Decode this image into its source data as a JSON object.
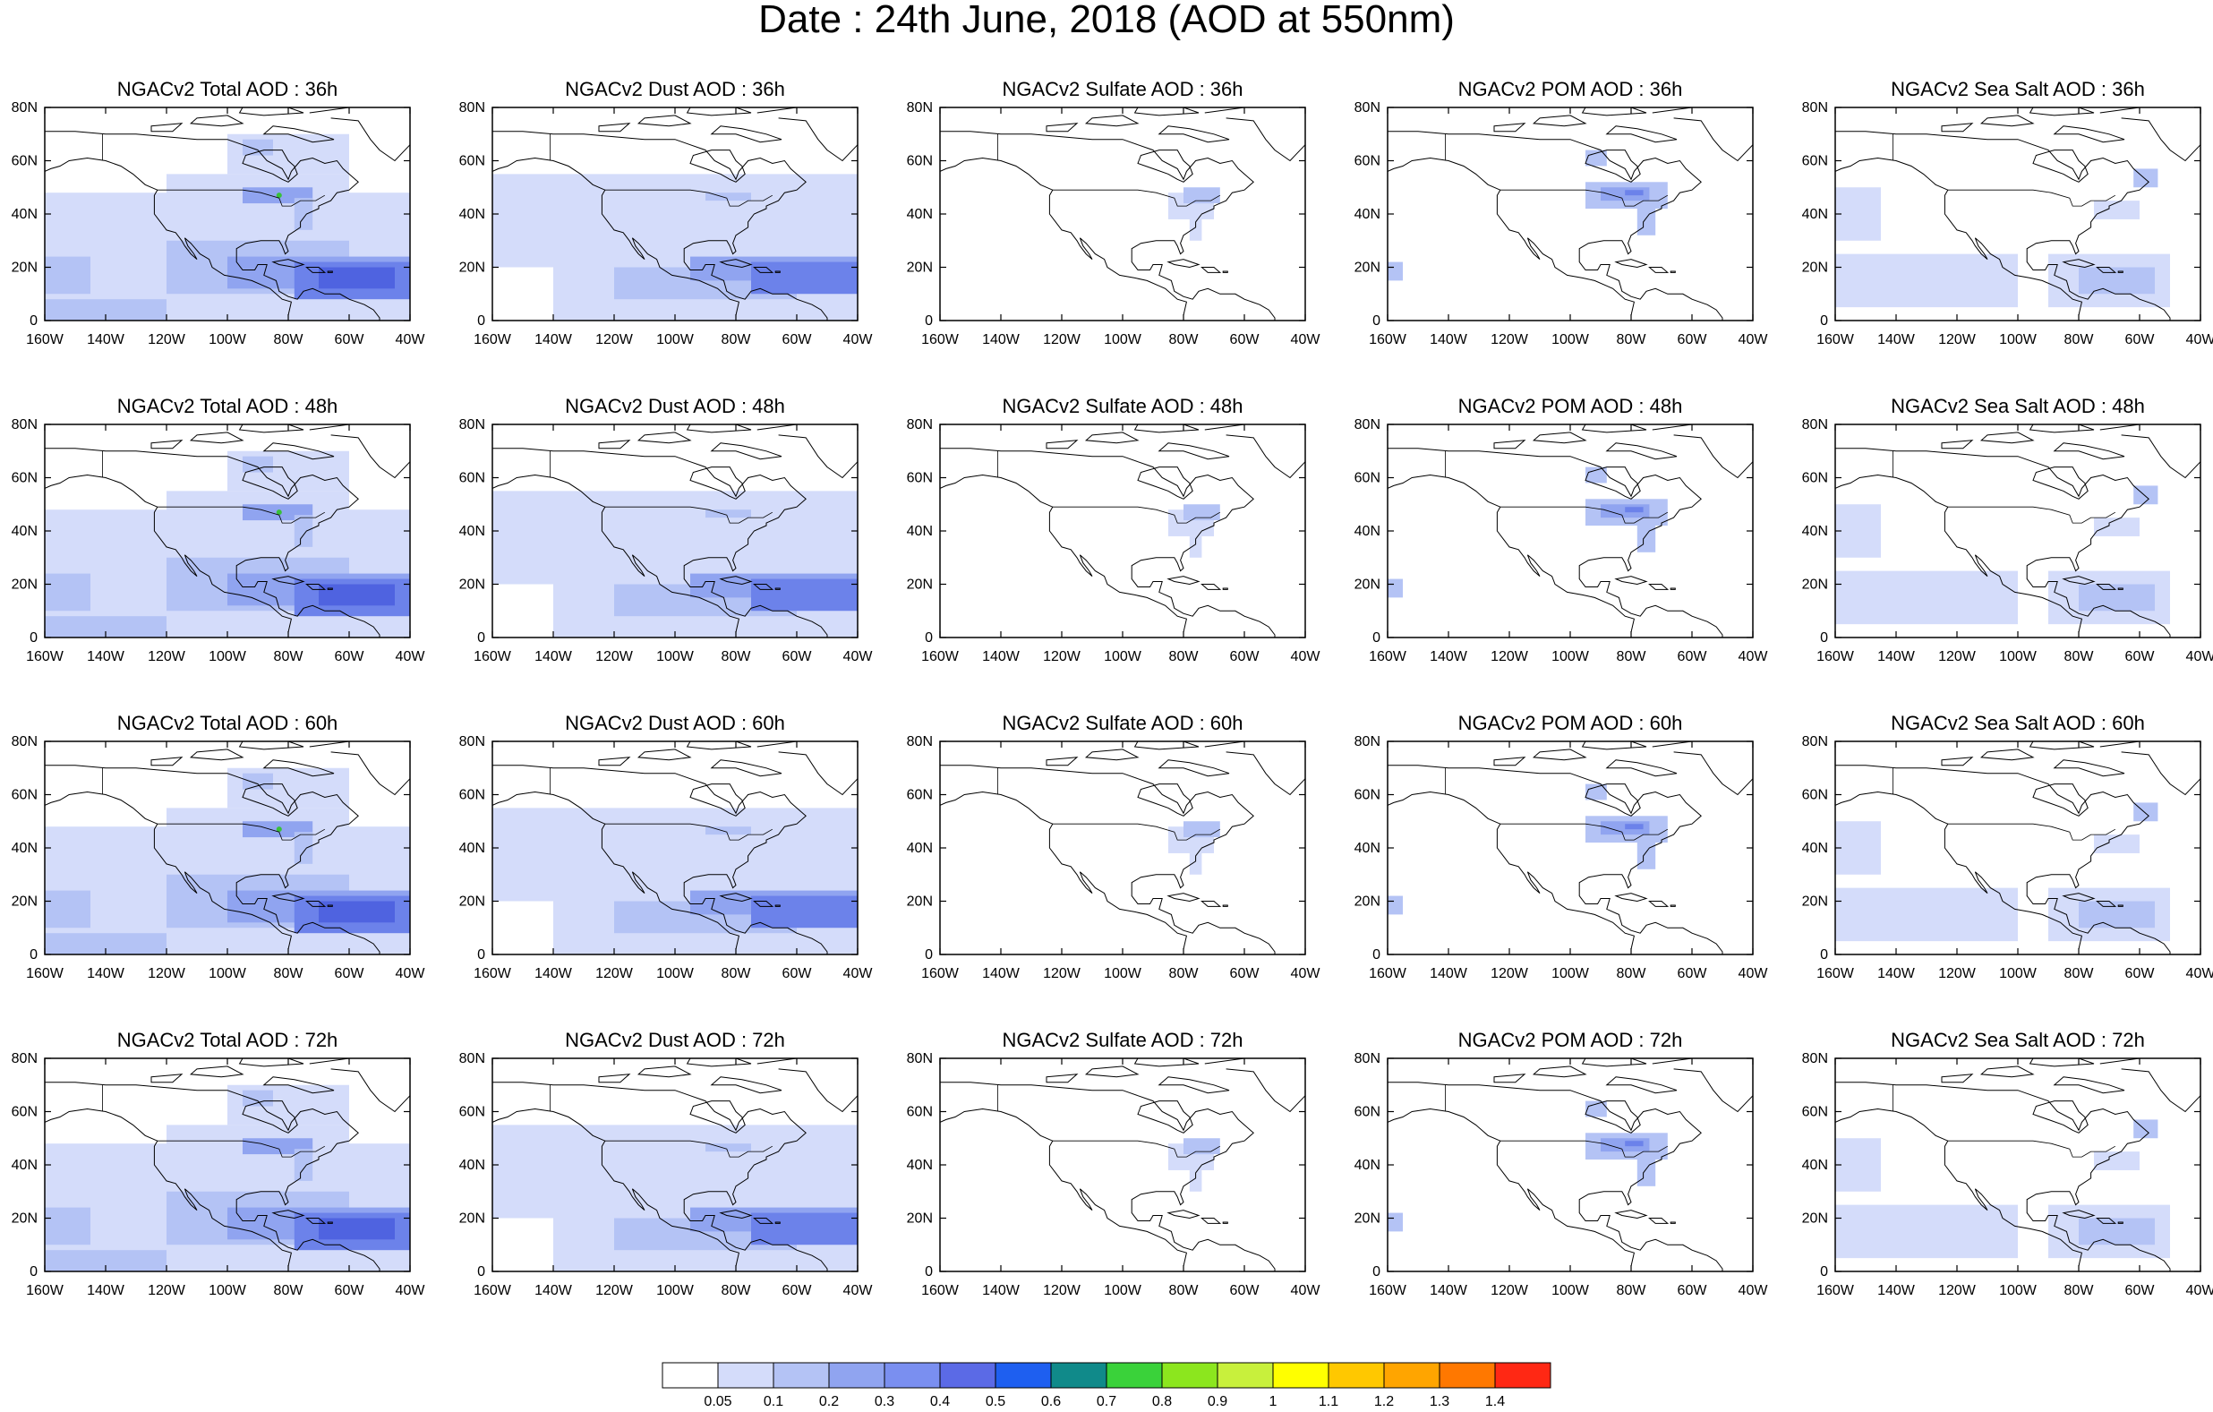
{
  "title": "Date : 24th June, 2018 (AOD at 550nm)",
  "axes": {
    "x_ticks": [
      "160W",
      "140W",
      "120W",
      "100W",
      "80W",
      "60W",
      "40W"
    ],
    "y_ticks": [
      "0",
      "20N",
      "40N",
      "60N",
      "80N"
    ],
    "lon_range": [
      -160,
      -40
    ],
    "lat_range": [
      0,
      80
    ]
  },
  "colors": {
    "very_light": "#d4dcfa",
    "light": "#b4c3f5",
    "medium": "#90a4f0",
    "strong": "#6c82ea",
    "stronger": "#4f63e0",
    "green": "#39c03a",
    "coast": "#000000"
  },
  "panels": [
    {
      "title": "NGACv2 Total AOD : 36h",
      "species": "total",
      "hour": 36
    },
    {
      "title": "NGACv2 Dust AOD : 36h",
      "species": "dust",
      "hour": 36
    },
    {
      "title": "NGACv2 Sulfate AOD : 36h",
      "species": "sulfate",
      "hour": 36
    },
    {
      "title": "NGACv2 POM AOD : 36h",
      "species": "pom",
      "hour": 36
    },
    {
      "title": "NGACv2 Sea Salt AOD : 36h",
      "species": "seasalt",
      "hour": 36
    },
    {
      "title": "NGACv2 Total AOD : 48h",
      "species": "total",
      "hour": 48
    },
    {
      "title": "NGACv2 Dust AOD : 48h",
      "species": "dust",
      "hour": 48
    },
    {
      "title": "NGACv2 Sulfate AOD : 48h",
      "species": "sulfate",
      "hour": 48
    },
    {
      "title": "NGACv2 POM AOD : 48h",
      "species": "pom",
      "hour": 48
    },
    {
      "title": "NGACv2 Sea Salt AOD : 48h",
      "species": "seasalt",
      "hour": 48
    },
    {
      "title": "NGACv2 Total AOD : 60h",
      "species": "total",
      "hour": 60
    },
    {
      "title": "NGACv2 Dust AOD : 60h",
      "species": "dust",
      "hour": 60
    },
    {
      "title": "NGACv2 Sulfate AOD : 60h",
      "species": "sulfate",
      "hour": 60
    },
    {
      "title": "NGACv2 POM AOD : 60h",
      "species": "pom",
      "hour": 60
    },
    {
      "title": "NGACv2 Sea Salt AOD : 60h",
      "species": "seasalt",
      "hour": 60
    },
    {
      "title": "NGACv2 Total AOD : 72h",
      "species": "total",
      "hour": 72
    },
    {
      "title": "NGACv2 Dust AOD : 72h",
      "species": "dust",
      "hour": 72
    },
    {
      "title": "NGACv2 Sulfate AOD : 72h",
      "species": "sulfate",
      "hour": 72
    },
    {
      "title": "NGACv2 POM AOD : 72h",
      "species": "pom",
      "hour": 72
    },
    {
      "title": "NGACv2 Sea Salt  AOD : 72h",
      "species": "seasalt",
      "hour": 72
    }
  ],
  "colorbar": {
    "colors": [
      "#ffffff",
      "#d4dcfa",
      "#b4c3f5",
      "#90a4f0",
      "#7a8ff0",
      "#5b6ae6",
      "#1e5ff0",
      "#108a8a",
      "#3ad23a",
      "#8ce61e",
      "#c8f03c",
      "#ffff00",
      "#ffc800",
      "#ffa500",
      "#ff7800",
      "#ff2814"
    ],
    "labels": [
      "0.05",
      "0.1",
      "0.2",
      "0.3",
      "0.4",
      "0.5",
      "0.6",
      "0.7",
      "0.8",
      "0.9",
      "1",
      "1.1",
      "1.2",
      "1.3",
      "1.4"
    ]
  }
}
